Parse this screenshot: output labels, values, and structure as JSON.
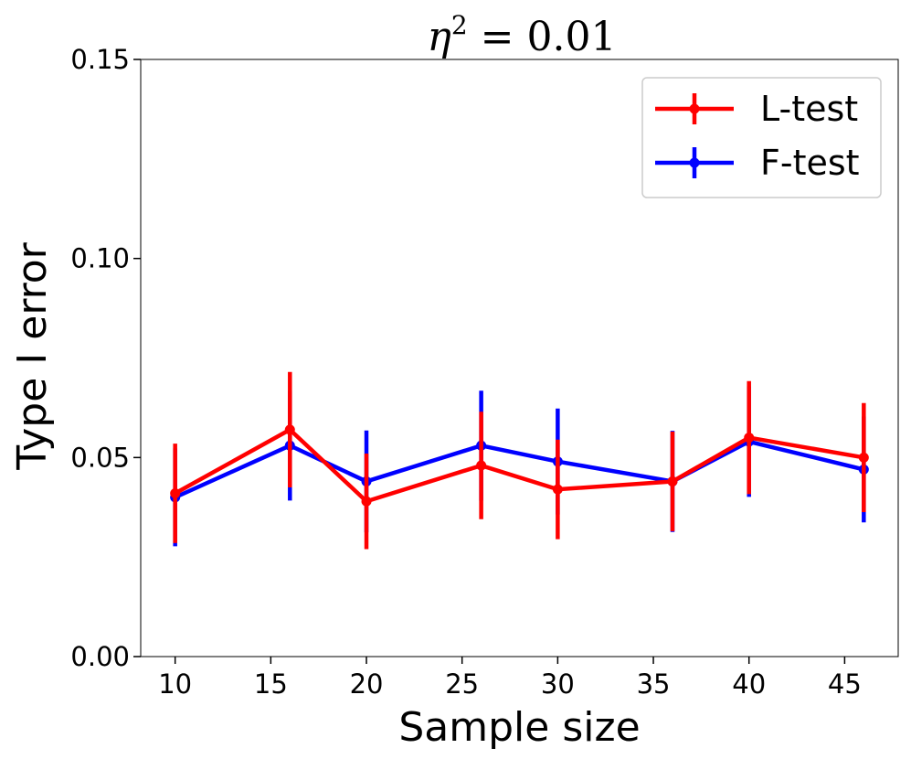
{
  "chart_data": {
    "type": "line",
    "title": {
      "symbol": "η",
      "exponent": "2",
      "equals": " = ",
      "value": "0.01"
    },
    "xlabel": "Sample size",
    "ylabel": "Type I error",
    "xlim": [
      8.2,
      47.8
    ],
    "ylim": [
      0,
      0.15
    ],
    "x_ticks": [
      10,
      15,
      20,
      25,
      30,
      35,
      40,
      45
    ],
    "x_tick_labels": [
      "10",
      "15",
      "20",
      "25",
      "30",
      "35",
      "40",
      "45"
    ],
    "y_ticks": [
      0,
      0.05,
      0.1,
      0.15
    ],
    "y_tick_labels": [
      "0.00",
      "0.05",
      "0.10",
      "0.15"
    ],
    "legend_position": "top-right",
    "x": [
      10,
      16,
      20,
      26,
      30,
      36,
      40,
      46
    ],
    "series": [
      {
        "name": "L-test",
        "color": "#ff0000",
        "values": [
          0.041,
          0.057,
          0.039,
          0.048,
          0.042,
          0.044,
          0.055,
          0.05
        ],
        "errors": [
          0.0125,
          0.0145,
          0.012,
          0.0135,
          0.0125,
          0.0125,
          0.0142,
          0.0137
        ]
      },
      {
        "name": "F-test",
        "color": "#0000ff",
        "values": [
          0.04,
          0.053,
          0.044,
          0.053,
          0.049,
          0.044,
          0.054,
          0.047
        ],
        "errors": [
          0.0123,
          0.0138,
          0.0128,
          0.0138,
          0.0133,
          0.0127,
          0.0139,
          0.0133
        ]
      }
    ]
  }
}
